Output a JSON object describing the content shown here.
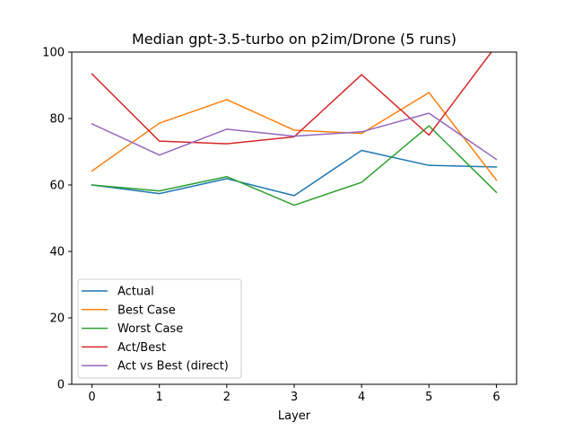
{
  "chart_data": {
    "type": "line",
    "title": "Median gpt-3.5-turbo on p2im/Drone (5 runs)",
    "xlabel": "Layer",
    "ylabel": "",
    "x": [
      0,
      1,
      2,
      3,
      4,
      5,
      6
    ],
    "xlim": [
      -0.3,
      6.3
    ],
    "ylim": [
      0,
      100
    ],
    "xticks": [
      "0",
      "1",
      "2",
      "3",
      "4",
      "5",
      "6"
    ],
    "yticks": [
      "0",
      "20",
      "40",
      "60",
      "80",
      "100"
    ],
    "ytick_values": [
      0,
      20,
      40,
      60,
      80,
      100
    ],
    "legend_position": "lower-left",
    "series": [
      {
        "name": "Actual",
        "color": "#1f77b4",
        "values": [
          60.0,
          57.4,
          61.9,
          56.8,
          70.4,
          65.9,
          65.4
        ]
      },
      {
        "name": "Best Case",
        "color": "#ff7f0e",
        "values": [
          64.2,
          78.6,
          85.7,
          76.5,
          75.5,
          87.8,
          61.5
        ]
      },
      {
        "name": "Worst Case",
        "color": "#2ca02c",
        "values": [
          60.0,
          58.2,
          62.5,
          53.9,
          60.8,
          77.8,
          57.8
        ]
      },
      {
        "name": "Act/Best",
        "color": "#d62728",
        "values": [
          93.4,
          73.2,
          72.4,
          74.5,
          93.2,
          75.0,
          102.0
        ]
      },
      {
        "name": "Act vs Best (direct)",
        "color": "#9467bd",
        "values": [
          78.4,
          69.0,
          76.8,
          74.7,
          76.0,
          81.6,
          67.7
        ]
      }
    ]
  }
}
